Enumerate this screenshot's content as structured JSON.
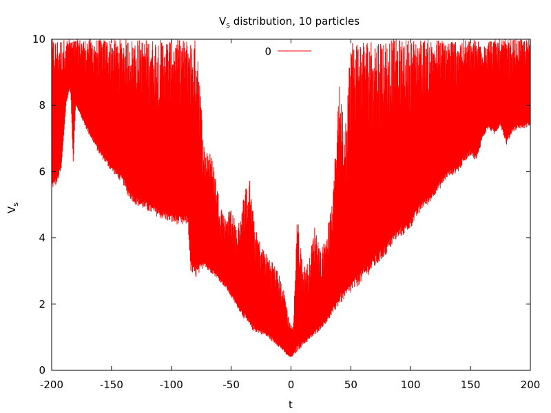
{
  "chart_data": {
    "type": "line",
    "title": "V",
    "title_sub": "s",
    "title_rest": " distribution, 10 particles",
    "xlabel": "t",
    "ylabel": "V",
    "ylabel_sub": "s",
    "xlim": [
      -200,
      200
    ],
    "ylim": [
      0,
      10
    ],
    "xticks": [
      -200,
      -150,
      -100,
      -50,
      0,
      50,
      100,
      150,
      200
    ],
    "yticks": [
      0,
      2,
      4,
      6,
      8,
      10
    ],
    "xtick_labels": [
      "-200",
      "-150",
      "-100",
      "-50",
      "0",
      "50",
      "100",
      "150",
      "200"
    ],
    "ytick_labels": [
      "0",
      "2",
      "4",
      "6",
      "8",
      "10"
    ],
    "grid": false,
    "legend_position": "top-center",
    "series": [
      {
        "name": "0",
        "color": "#ff0000",
        "envelope_x": [
          -200,
          -199,
          -196,
          -192,
          -188,
          -185,
          -184,
          -182,
          -180,
          -175,
          -170,
          -160,
          -150,
          -140,
          -137,
          -135,
          -130,
          -120,
          -110,
          -100,
          -95,
          -90,
          -88,
          -86,
          -84,
          -82,
          -80,
          -78,
          -75,
          -72,
          -70,
          -65,
          -60,
          -55,
          -50,
          -45,
          -40,
          -35,
          -30,
          -25,
          -20,
          -15,
          -10,
          -5,
          -2,
          0,
          2,
          5,
          10,
          15,
          20,
          25,
          30,
          35,
          40,
          45,
          50,
          55,
          60,
          65,
          70,
          75,
          80,
          85,
          90,
          95,
          100,
          105,
          110,
          115,
          120,
          125,
          130,
          135,
          140,
          145,
          150,
          155,
          160,
          165,
          170,
          175,
          180,
          185,
          190,
          195,
          200
        ],
        "envelope_min": [
          5.5,
          5.5,
          5.6,
          6.0,
          8.0,
          8.5,
          8.3,
          6.2,
          8.0,
          7.6,
          7.2,
          6.5,
          6.0,
          5.6,
          5.3,
          5.2,
          5.0,
          4.8,
          4.6,
          4.45,
          4.4,
          4.35,
          4.4,
          4.4,
          3.0,
          2.8,
          2.8,
          2.8,
          3.0,
          3.2,
          3.0,
          2.9,
          2.7,
          2.5,
          2.2,
          1.9,
          1.6,
          1.3,
          1.15,
          1.1,
          1.0,
          0.85,
          0.7,
          0.5,
          0.4,
          0.38,
          0.45,
          0.55,
          0.75,
          0.9,
          1.05,
          1.25,
          1.45,
          1.7,
          1.95,
          2.15,
          2.3,
          2.5,
          2.7,
          2.9,
          3.1,
          3.3,
          3.5,
          3.8,
          4.0,
          4.1,
          4.3,
          4.6,
          4.9,
          5.0,
          5.3,
          5.5,
          5.8,
          5.9,
          6.0,
          6.3,
          6.5,
          6.3,
          7.0,
          7.3,
          7.1,
          7.4,
          6.8,
          7.2,
          7.3,
          7.3,
          7.4
        ],
        "envelope_max": [
          10,
          10,
          10,
          10,
          10,
          10,
          10,
          10,
          10,
          10,
          10,
          10,
          10,
          10,
          10,
          10,
          10,
          10,
          10,
          10,
          10,
          10,
          10,
          10,
          10,
          10,
          10,
          10,
          8.0,
          6.5,
          6.8,
          6.3,
          5.2,
          4.6,
          5.0,
          4.2,
          5.2,
          5.9,
          4.3,
          3.8,
          3.5,
          3.3,
          2.9,
          2.3,
          1.6,
          1.4,
          1.3,
          4.8,
          3.1,
          3.3,
          4.4,
          3.6,
          4.2,
          5.2,
          8.8,
          7.4,
          10,
          10,
          10,
          10,
          10,
          10,
          10,
          10,
          10,
          10,
          10,
          10,
          10,
          10,
          10,
          10,
          10,
          10,
          10,
          10,
          10,
          10,
          10,
          10,
          10,
          10,
          10,
          10,
          10,
          10,
          10
        ]
      }
    ]
  }
}
